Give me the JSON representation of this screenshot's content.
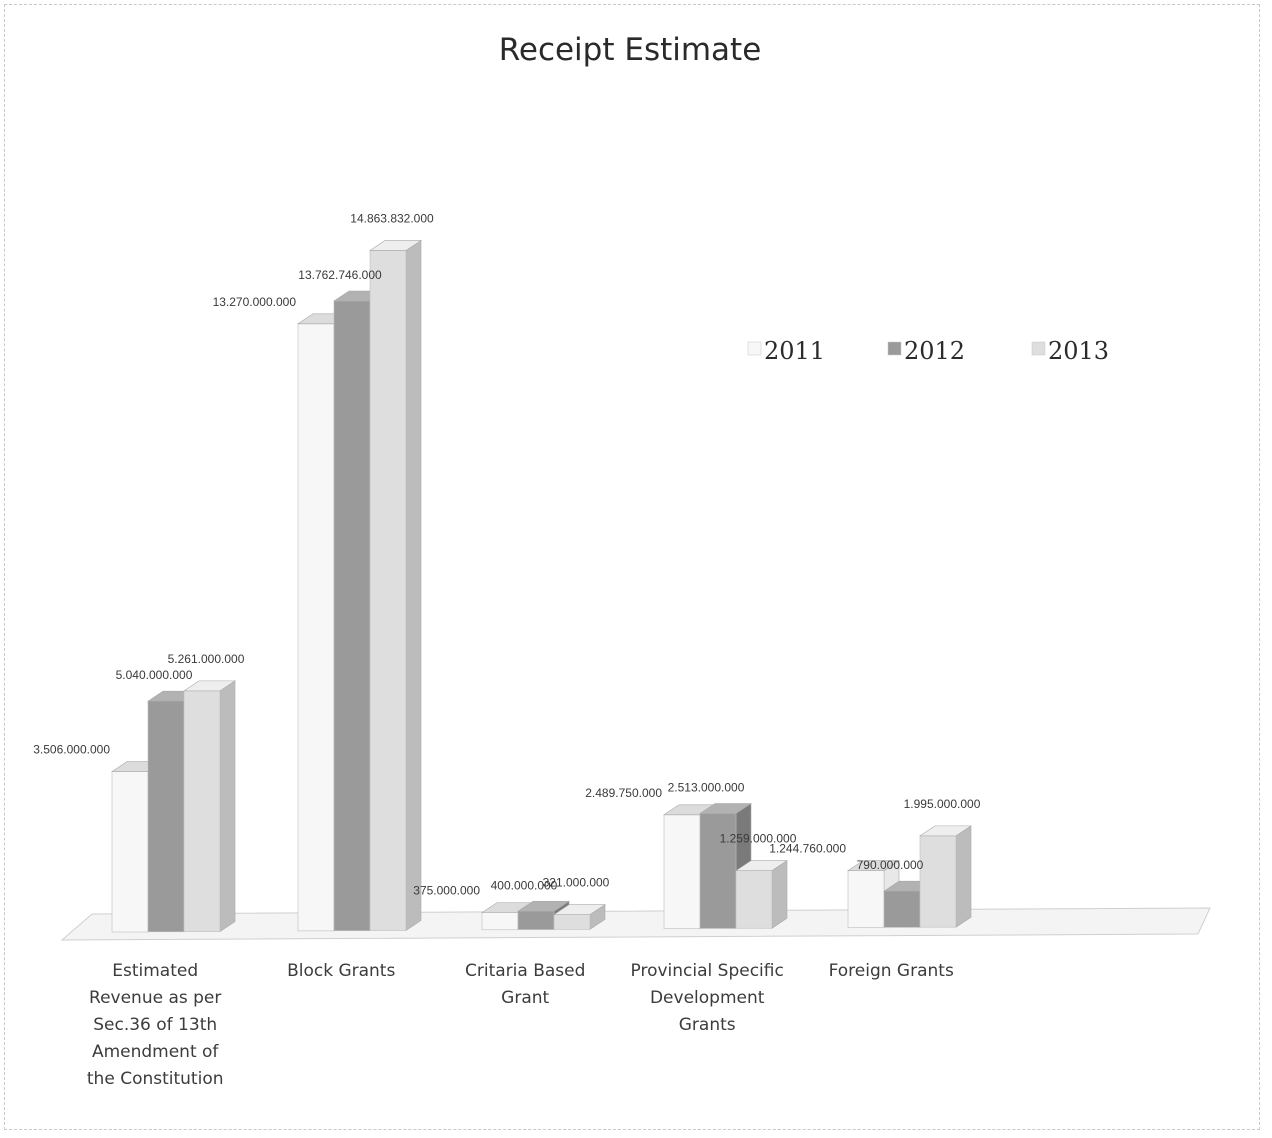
{
  "chart_data": {
    "type": "bar",
    "title": "Receipt Estimate",
    "legend_position": "top-right",
    "grid": false,
    "categories": [
      [
        "Estimated",
        "Revenue as per",
        "Sec.36 of 13th",
        "Amendment of",
        "the Constitution"
      ],
      [
        "Block Grants"
      ],
      [
        "Critaria Based",
        "Grant"
      ],
      [
        "Provincial Specific",
        "Development",
        "Grants"
      ],
      [
        "Foreign Grants"
      ]
    ],
    "series": [
      {
        "name": "2011",
        "values": [
          3506000000,
          13270000000,
          375000000,
          2489750000,
          1244760000
        ],
        "labels": [
          "3.506.000.000",
          "13.270.000.000",
          "375.000.000",
          "2.489.750.000",
          "1.244.760.000"
        ]
      },
      {
        "name": "2012",
        "values": [
          5040000000,
          13762746000,
          400000000,
          2513000000,
          790000000
        ],
        "labels": [
          "5.040.000.000",
          "13.762.746.000",
          "400.000.000",
          "2.513.000.000",
          "790.000.000"
        ]
      },
      {
        "name": "2013",
        "values": [
          5261000000,
          14863832000,
          321000000,
          1259000000,
          1995000000
        ],
        "labels": [
          "5.261.000.000",
          "14.863.832.000",
          "321.000.000",
          "1.259.000.000",
          "1.995.000.000"
        ]
      }
    ],
    "colors": {
      "2011": [
        "#f7f7f7",
        "#e8e8e8",
        "#dcdcdc"
      ],
      "2012": [
        "#9a9a9a",
        "#7a7a7a",
        "#b2b2b2"
      ],
      "2013": [
        "#dedede",
        "#bcbcbc",
        "#eeeeee"
      ]
    }
  }
}
